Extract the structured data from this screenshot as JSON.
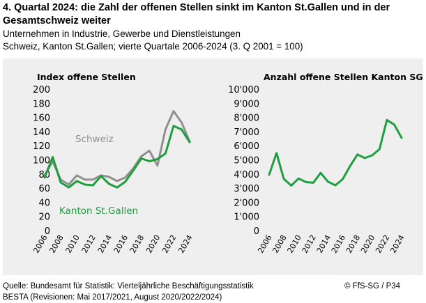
{
  "header": {
    "title": "4. Quartal 2024: die Zahl der offenen Stellen sinkt im Kanton St.Gallen und in der Gesamtschweiz weiter",
    "subtitle1": "Unternehmen in Industrie, Gewerbe und Dienstleistungen",
    "subtitle2": "Schweiz, Kanton St.Gallen; vierte Quartale 2006-2024 (3. Q 2001 = 100)"
  },
  "footer": {
    "source1": "Quelle: Bundesamt für Statistik: Vierteljährliche Beschäftigungsstatistik",
    "source2": "BESTA (Revisionen: Mai 2017/2021, August 2020/2022/2024)",
    "credit": "© FfS-SG / P34"
  },
  "colors": {
    "background": "#efefef",
    "schweiz": "#909090",
    "stgallen": "#1e9e3e"
  },
  "chart_data": [
    {
      "type": "line",
      "title": "Index offene Stellen",
      "x": [
        2006,
        2007,
        2008,
        2009,
        2010,
        2011,
        2012,
        2013,
        2014,
        2015,
        2016,
        2017,
        2018,
        2019,
        2020,
        2021,
        2022,
        2023,
        2024
      ],
      "xticks": [
        "2006",
        "2008",
        "2010",
        "2012",
        "2014",
        "2016",
        "2018",
        "2020",
        "2022",
        "2024"
      ],
      "yticks": [
        "0",
        "20",
        "40",
        "60",
        "80",
        "100",
        "120",
        "140",
        "160",
        "180",
        "200"
      ],
      "ylim": [
        0,
        200
      ],
      "series": [
        {
          "name": "Schweiz",
          "values": [
            78,
            98,
            72,
            65,
            78,
            72,
            72,
            78,
            76,
            70,
            75,
            88,
            105,
            113,
            92,
            143,
            169,
            153,
            126
          ]
        },
        {
          "name": "Kanton St.Gallen",
          "values": [
            75,
            104,
            68,
            61,
            70,
            65,
            64,
            77,
            66,
            61,
            69,
            85,
            102,
            98,
            101,
            109,
            148,
            143,
            125
          ]
        }
      ]
    },
    {
      "type": "line",
      "title": "Anzahl offene Stellen Kanton SG",
      "x": [
        2006,
        2007,
        2008,
        2009,
        2010,
        2011,
        2012,
        2013,
        2014,
        2015,
        2016,
        2017,
        2018,
        2019,
        2020,
        2021,
        2022,
        2023,
        2024
      ],
      "xticks": [
        "2006",
        "2008",
        "2010",
        "2012",
        "2014",
        "2016",
        "2018",
        "2020",
        "2022",
        "2024"
      ],
      "yticks": [
        "0",
        "1'000",
        "2'000",
        "3'000",
        "4'000",
        "5'000",
        "6'000",
        "7'000",
        "8'000",
        "9'000",
        "10'000"
      ],
      "ylim": [
        0,
        10000
      ],
      "series": [
        {
          "name": "Kanton St.Gallen",
          "values": [
            3950,
            5480,
            3650,
            3180,
            3680,
            3430,
            3380,
            4080,
            3460,
            3200,
            3640,
            4560,
            5380,
            5130,
            5320,
            5760,
            7820,
            7500,
            6560
          ]
        }
      ]
    }
  ]
}
